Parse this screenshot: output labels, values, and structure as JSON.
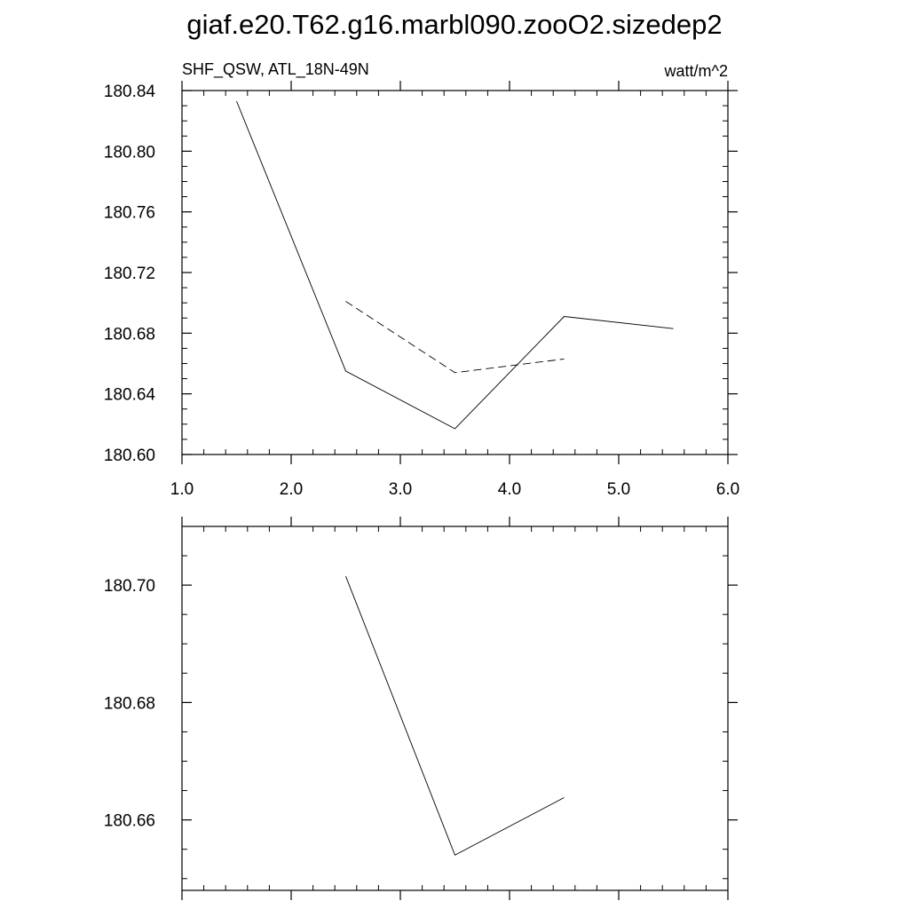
{
  "page": {
    "title": "giaf.e20.T62.g16.marbl090.zooO2.sizedep2",
    "panel_left_label": "SHF_QSW, ATL_18N-49N",
    "panel_right_label": "watt/m^2"
  },
  "chart_data": [
    {
      "type": "line",
      "title": "",
      "xlabel": "",
      "ylabel": "",
      "xlim": [
        1.0,
        6.0
      ],
      "ylim": [
        180.6,
        180.84
      ],
      "x_ticks": [
        1.0,
        2.0,
        3.0,
        4.0,
        5.0,
        6.0
      ],
      "x_tick_labels": [
        "1.0",
        "2.0",
        "3.0",
        "4.0",
        "5.0",
        "6.0"
      ],
      "y_ticks": [
        180.6,
        180.64,
        180.68,
        180.72,
        180.76,
        180.8,
        180.84
      ],
      "y_tick_labels": [
        "180.60",
        "180.64",
        "180.68",
        "180.72",
        "180.76",
        "180.80",
        "180.84"
      ],
      "x_minor_step": 0.2,
      "y_minor_step": 0.01,
      "grid": false,
      "series": [
        {
          "style": "solid",
          "color": "#000000",
          "x": [
            1.5,
            2.5,
            3.5,
            4.5,
            5.5
          ],
          "y": [
            180.833,
            180.655,
            180.617,
            180.691,
            180.683
          ]
        },
        {
          "style": "dashed",
          "color": "#000000",
          "x": [
            2.5,
            3.5,
            4.5
          ],
          "y": [
            180.701,
            180.654,
            180.663
          ]
        }
      ]
    },
    {
      "type": "line",
      "title": "",
      "xlabel": "",
      "ylabel": "",
      "xlim": [
        1.0,
        6.0
      ],
      "ylim": [
        180.648,
        180.71
      ],
      "x_ticks": [
        1.0,
        2.0,
        3.0,
        4.0,
        5.0,
        6.0
      ],
      "x_tick_labels": [],
      "y_ticks": [
        180.66,
        180.68,
        180.7
      ],
      "y_tick_labels": [
        "180.66",
        "180.68",
        "180.70"
      ],
      "x_minor_step": 0.2,
      "y_minor_step": 0.005,
      "grid": false,
      "series": [
        {
          "style": "solid",
          "color": "#000000",
          "x": [
            2.5,
            3.5,
            4.5
          ],
          "y": [
            180.7015,
            180.654,
            180.6638
          ]
        }
      ]
    }
  ]
}
